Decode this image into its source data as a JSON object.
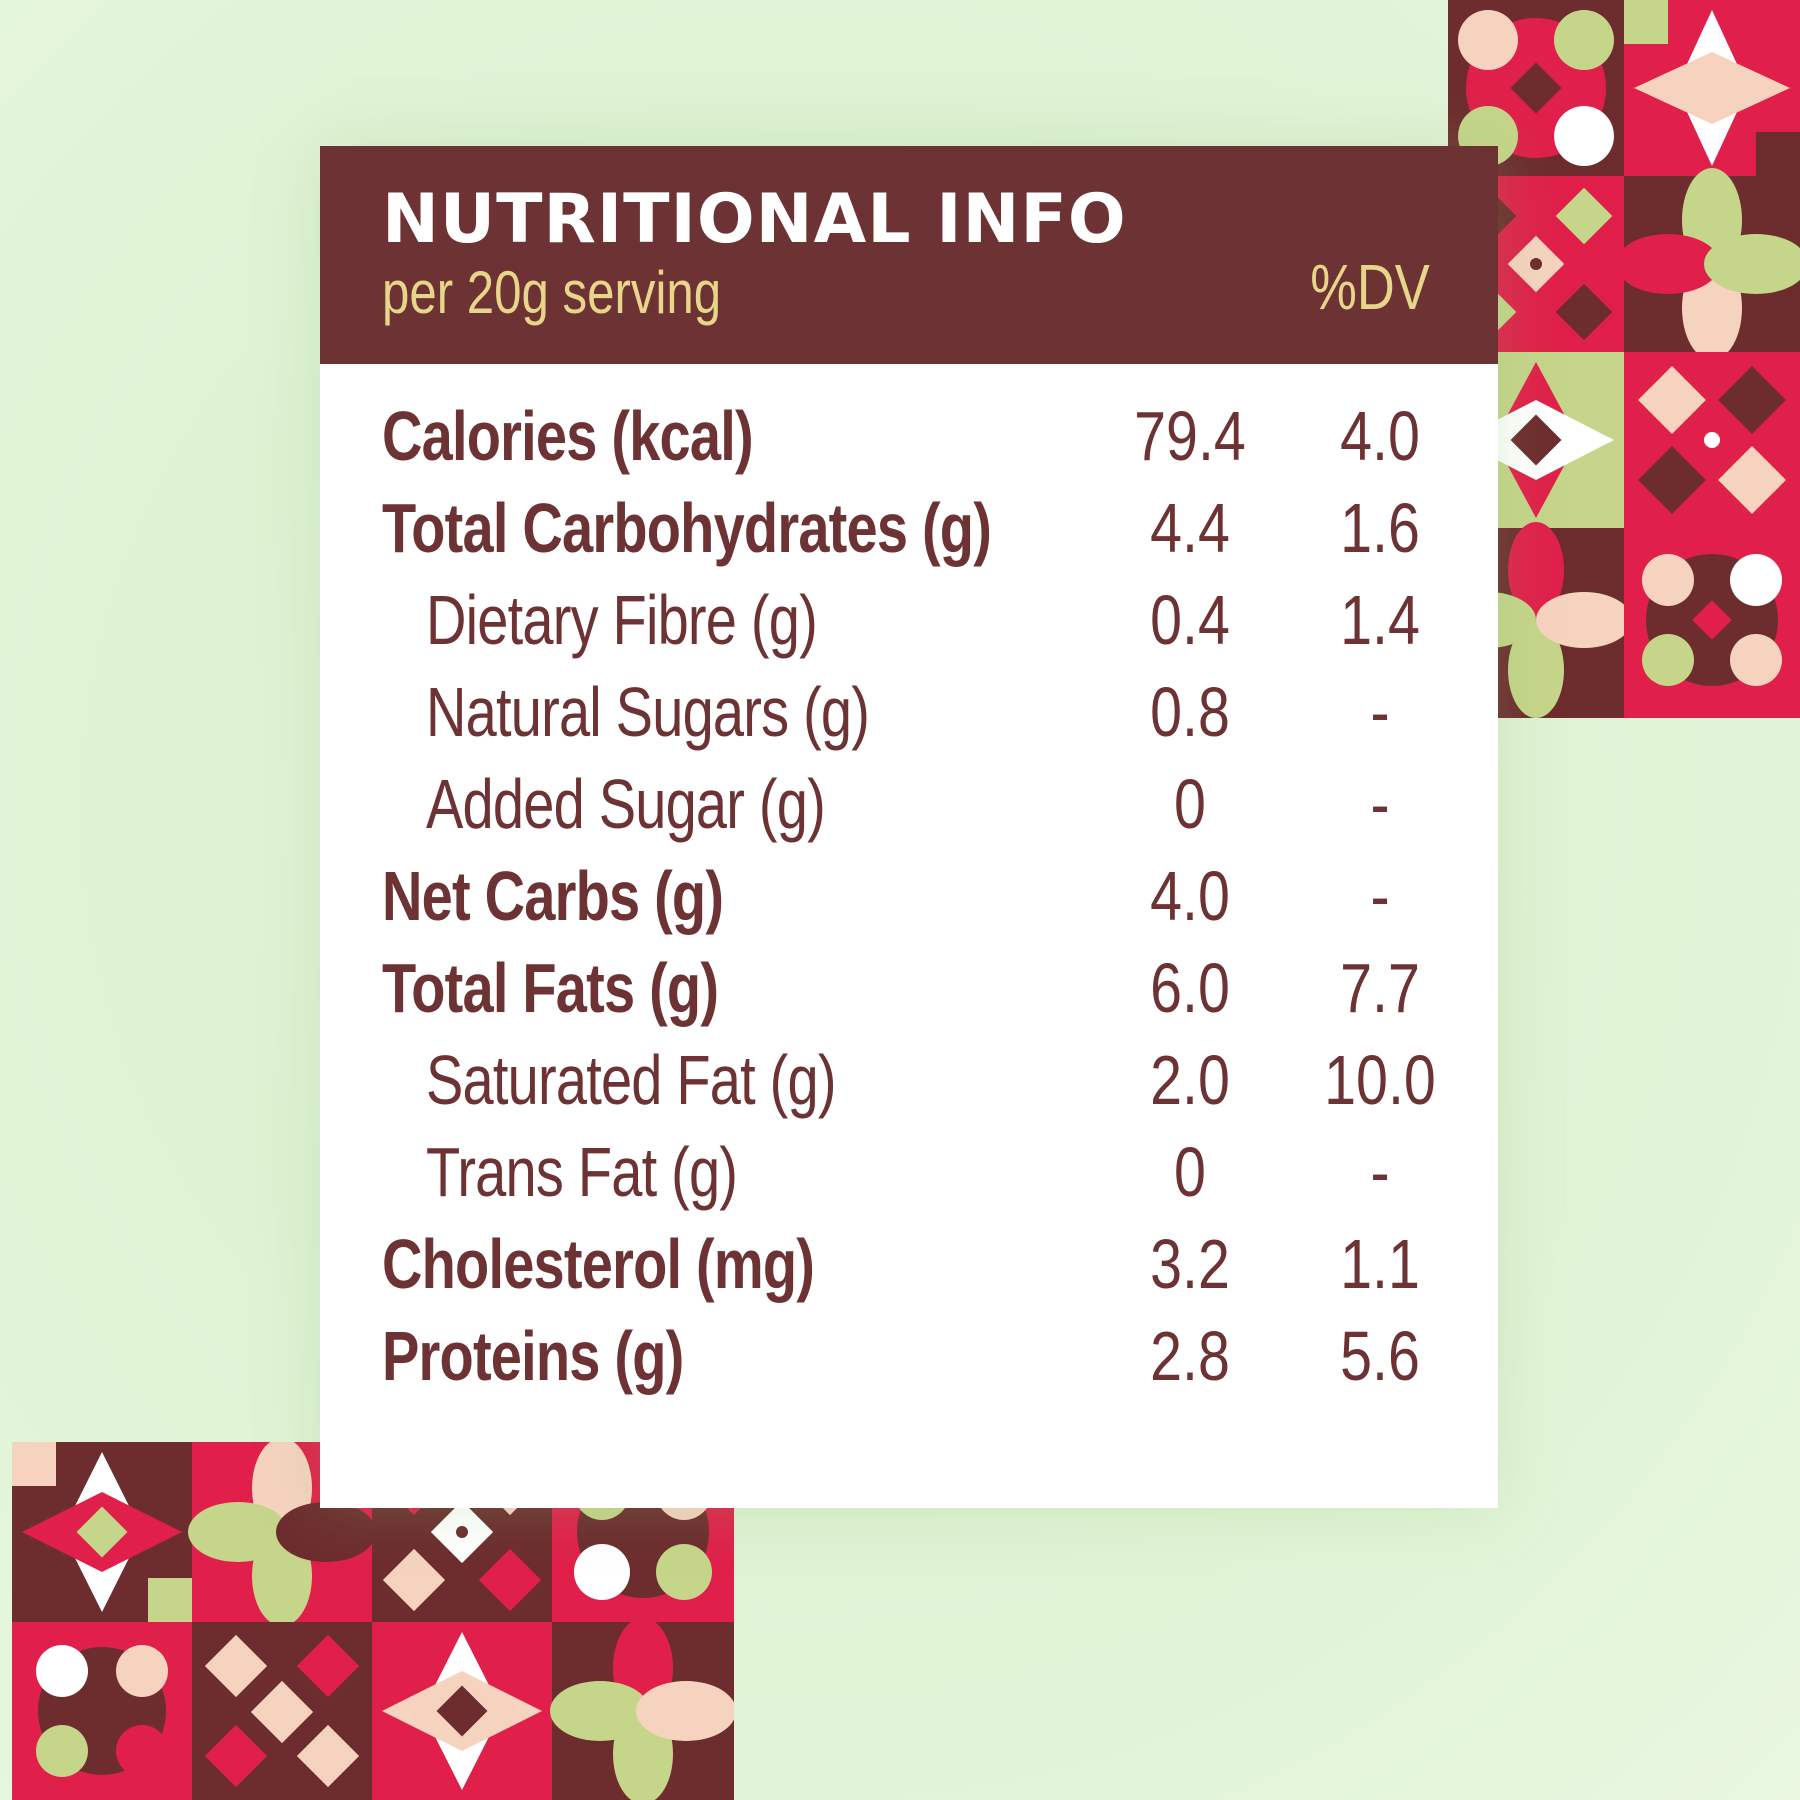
{
  "panel": {
    "title": "NUTRITIONAL INFO",
    "serving": "per 20g serving",
    "dv_header": "%DV"
  },
  "nutrients": [
    {
      "label": "Calories (kcal)",
      "amount": "79.4",
      "dv": "4.0",
      "level": "main"
    },
    {
      "label": "Total Carbohydrates (g)",
      "amount": "4.4",
      "dv": "1.6",
      "level": "main"
    },
    {
      "label": "Dietary Fibre (g)",
      "amount": "0.4",
      "dv": "1.4",
      "level": "sub"
    },
    {
      "label": "Natural Sugars (g)",
      "amount": "0.8",
      "dv": "-",
      "level": "sub"
    },
    {
      "label": "Added Sugar (g)",
      "amount": "0",
      "dv": "-",
      "level": "sub"
    },
    {
      "label": "Net Carbs (g)",
      "amount": "4.0",
      "dv": "-",
      "level": "main"
    },
    {
      "label": "Total Fats (g)",
      "amount": "6.0",
      "dv": "7.7",
      "level": "main"
    },
    {
      "label": "Saturated Fat (g)",
      "amount": "2.0",
      "dv": "10.0",
      "level": "sub"
    },
    {
      "label": "Trans Fat (g)",
      "amount": "0",
      "dv": "-",
      "level": "sub"
    },
    {
      "label": "Cholesterol (mg)",
      "amount": "3.2",
      "dv": "1.1",
      "level": "main"
    },
    {
      "label": "Proteins (g)",
      "amount": "2.8",
      "dv": "5.6",
      "level": "main"
    }
  ],
  "colors": {
    "header_bg": "#6d3233",
    "accent_text": "#e7d58a",
    "body_text": "#6d3233",
    "background": "#e3f5d9",
    "pattern_red": "#e0204a",
    "pattern_brown": "#6d2c2e",
    "pattern_green": "#c5d58a",
    "pattern_peach": "#f6d3bf"
  }
}
